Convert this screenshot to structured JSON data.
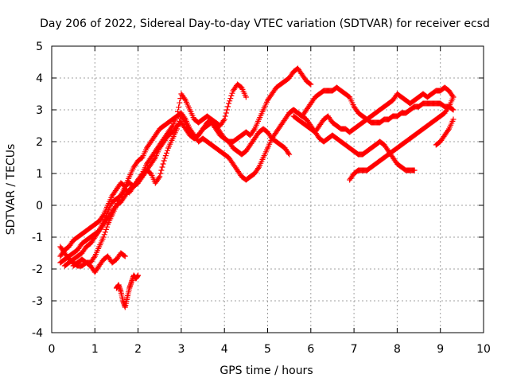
{
  "chart_data": {
    "type": "scatter",
    "title": "Day 206 of 2022, Sidereal Day-to-day VTEC variation (SDTVAR) for receiver ecsd",
    "xlabel": "GPS time / hours",
    "ylabel": "SDTVAR / TECUs",
    "xlim": [
      0,
      10
    ],
    "ylim": [
      -4,
      5
    ],
    "xticks": [
      "0",
      "1",
      "2",
      "3",
      "4",
      "5",
      "6",
      "7",
      "8",
      "9",
      "10"
    ],
    "yticks": [
      "-4",
      "-3",
      "-2",
      "-1",
      "0",
      "1",
      "2",
      "3",
      "4",
      "5"
    ],
    "grid": true,
    "marker": "plus",
    "color": "#ff0000",
    "series": [
      {
        "x": [
          0.2,
          0.3,
          0.4,
          0.5,
          0.6,
          0.7,
          0.8,
          0.9,
          1.0,
          1.1,
          1.2,
          1.3,
          1.4,
          1.5,
          1.6,
          1.7,
          1.8,
          1.9,
          2.0,
          2.1,
          2.2,
          2.3,
          2.4,
          2.5,
          2.6,
          2.7,
          2.8,
          2.9,
          3.0,
          3.1,
          3.2,
          3.3,
          3.4,
          3.5,
          3.6,
          3.7,
          3.8,
          3.9,
          4.0,
          4.1,
          4.2,
          4.3,
          4.4,
          4.5
        ],
        "y": [
          -1.6,
          -1.4,
          -1.3,
          -1.1,
          -1.0,
          -0.9,
          -0.8,
          -0.7,
          -0.6,
          -0.5,
          -0.3,
          0.0,
          0.3,
          0.5,
          0.7,
          0.6,
          0.9,
          1.2,
          1.4,
          1.5,
          1.8,
          2.0,
          2.2,
          2.4,
          2.5,
          2.6,
          2.7,
          2.8,
          3.5,
          3.3,
          3.0,
          2.7,
          2.6,
          2.7,
          2.8,
          2.7,
          2.6,
          2.5,
          2.7,
          3.2,
          3.6,
          3.8,
          3.7,
          3.4
        ]
      },
      {
        "x": [
          0.3,
          0.4,
          0.5,
          0.6,
          0.7,
          0.8,
          0.9,
          1.0,
          1.1,
          1.2,
          1.3,
          1.4,
          1.5,
          1.6,
          1.7,
          1.8,
          1.9,
          2.0,
          2.1,
          2.2,
          2.3,
          2.4,
          2.5,
          2.6,
          2.7,
          2.8,
          2.9,
          3.0,
          3.1,
          3.2,
          3.3,
          3.4,
          3.5,
          3.6,
          3.7,
          3.8,
          3.9,
          4.0,
          4.1,
          4.2,
          4.3,
          4.4,
          4.5,
          4.6,
          4.7,
          4.8,
          4.9,
          5.0,
          5.1,
          5.2,
          5.3,
          5.4,
          5.5,
          5.6,
          5.7,
          5.8,
          5.9,
          6.0
        ],
        "y": [
          -1.9,
          -1.8,
          -1.7,
          -1.6,
          -1.5,
          -1.3,
          -1.2,
          -1.0,
          -0.8,
          -0.5,
          -0.2,
          0.1,
          0.2,
          0.3,
          0.5,
          0.4,
          0.6,
          0.8,
          0.9,
          1.1,
          1.0,
          0.7,
          0.9,
          1.4,
          1.8,
          2.1,
          2.4,
          2.8,
          2.6,
          2.3,
          2.1,
          2.2,
          2.4,
          2.6,
          2.7,
          2.5,
          2.3,
          2.1,
          2.0,
          2.0,
          2.1,
          2.2,
          2.3,
          2.2,
          2.4,
          2.7,
          3.0,
          3.3,
          3.5,
          3.7,
          3.8,
          3.9,
          4.0,
          4.2,
          4.3,
          4.1,
          3.9,
          3.8
        ]
      },
      {
        "x": [
          0.2,
          0.3,
          0.4,
          0.5,
          0.6,
          0.7,
          0.8,
          0.9,
          1.0,
          1.1,
          1.2,
          1.3,
          1.4,
          1.5,
          1.6,
          1.7,
          1.8,
          1.9,
          2.0,
          2.1,
          2.2,
          2.3,
          2.4,
          2.5,
          2.6,
          2.7,
          2.8,
          2.9,
          3.0,
          3.1,
          3.2,
          3.3,
          3.4,
          3.5,
          3.6,
          3.7,
          3.8,
          3.9,
          4.0,
          4.1,
          4.2,
          4.3,
          4.4,
          4.5,
          4.6,
          4.7,
          4.8,
          4.9,
          5.0,
          5.1,
          5.2,
          5.3,
          5.4,
          5.5,
          5.6,
          5.7,
          5.8,
          5.9,
          6.0,
          6.1,
          6.2,
          6.3,
          6.4,
          6.5,
          6.6,
          6.7,
          6.8,
          6.9,
          7.0,
          7.1,
          7.2,
          7.3,
          7.4,
          7.5,
          7.6,
          7.7,
          7.8,
          7.9,
          8.0,
          8.1,
          8.2,
          8.3,
          8.4
        ],
        "y": [
          -1.3,
          -1.5,
          -1.7,
          -1.8,
          -1.9,
          -1.9,
          -1.8,
          -1.8,
          -1.6,
          -1.3,
          -1.0,
          -0.6,
          -0.3,
          0.0,
          0.3,
          0.6,
          0.7,
          0.6,
          0.8,
          1.0,
          1.3,
          1.5,
          1.7,
          1.9,
          2.1,
          2.3,
          2.5,
          2.8,
          2.9,
          2.7,
          2.4,
          2.2,
          2.0,
          2.1,
          2.0,
          1.9,
          1.8,
          1.7,
          1.6,
          1.5,
          1.3,
          1.1,
          0.9,
          0.8,
          0.9,
          1.0,
          1.2,
          1.5,
          1.8,
          2.1,
          2.3,
          2.5,
          2.7,
          2.9,
          3.0,
          2.9,
          2.8,
          2.7,
          2.5,
          2.3,
          2.1,
          2.0,
          2.1,
          2.2,
          2.1,
          2.0,
          1.9,
          1.8,
          1.7,
          1.6,
          1.6,
          1.7,
          1.8,
          1.9,
          2.0,
          1.9,
          1.7,
          1.5,
          1.3,
          1.2,
          1.1,
          1.1,
          1.1
        ]
      },
      {
        "x": [
          0.2,
          0.3,
          0.4,
          0.5,
          0.6,
          0.7,
          0.8,
          0.9,
          1.0,
          1.1,
          1.2,
          1.3,
          1.4,
          1.5,
          1.6,
          1.7,
          1.8,
          1.9,
          2.0,
          2.1,
          2.2,
          2.3,
          2.4,
          2.5,
          2.6,
          2.7,
          2.8,
          2.9,
          3.0,
          3.1,
          3.2,
          3.3,
          3.4,
          3.5,
          3.6,
          3.7,
          3.8,
          3.9,
          4.0,
          4.1,
          4.2,
          4.3,
          4.4,
          4.5,
          4.6,
          4.7,
          4.8,
          4.9,
          5.0,
          5.1,
          5.2,
          5.3,
          5.4,
          5.5
        ],
        "y": [
          -1.8,
          -1.7,
          -1.6,
          -1.5,
          -1.4,
          -1.2,
          -1.1,
          -1.0,
          -0.9,
          -0.8,
          -0.6,
          -0.4,
          -0.2,
          0.0,
          0.1,
          0.3,
          0.5,
          0.6,
          0.7,
          0.9,
          1.1,
          1.3,
          1.5,
          1.8,
          2.0,
          2.2,
          2.3,
          2.5,
          2.6,
          2.4,
          2.2,
          2.1,
          2.2,
          2.4,
          2.5,
          2.6,
          2.4,
          2.2,
          2.1,
          2.0,
          1.8,
          1.7,
          1.6,
          1.7,
          1.9,
          2.1,
          2.3,
          2.4,
          2.3,
          2.1,
          2.0,
          1.9,
          1.8,
          1.6
        ]
      },
      {
        "x": [
          0.5,
          0.6,
          0.7,
          0.8,
          0.9,
          1.0,
          1.1,
          1.2,
          1.3,
          1.4,
          1.5,
          1.6,
          1.7
        ],
        "y": [
          -1.9,
          -1.8,
          -1.7,
          -1.8,
          -1.9,
          -2.1,
          -1.9,
          -1.7,
          -1.6,
          -1.8,
          -1.7,
          -1.5,
          -1.6
        ]
      },
      {
        "x": [
          1.5,
          1.55,
          1.6,
          1.65,
          1.7,
          1.75,
          1.8,
          1.85,
          1.9,
          1.95,
          2.0
        ],
        "y": [
          -2.6,
          -2.5,
          -2.7,
          -3.0,
          -3.2,
          -2.9,
          -2.6,
          -2.4,
          -2.2,
          -2.3,
          -2.2
        ]
      },
      {
        "x": [
          5.6,
          5.7,
          5.8,
          5.9,
          6.0,
          6.1,
          6.2,
          6.3,
          6.4,
          6.5,
          6.6,
          6.7,
          6.8,
          6.9,
          7.0,
          7.1,
          7.2,
          7.3,
          7.4,
          7.5,
          7.6,
          7.7,
          7.8,
          7.9,
          8.0,
          8.1,
          8.2,
          8.3,
          8.4,
          8.5,
          8.6,
          8.7,
          8.8,
          8.9,
          9.0,
          9.1,
          9.2,
          9.3
        ],
        "y": [
          2.8,
          2.7,
          2.6,
          2.5,
          2.4,
          2.3,
          2.5,
          2.7,
          2.8,
          2.6,
          2.5,
          2.4,
          2.4,
          2.3,
          2.4,
          2.5,
          2.6,
          2.7,
          2.8,
          2.9,
          3.0,
          3.1,
          3.2,
          3.3,
          3.5,
          3.4,
          3.3,
          3.2,
          3.3,
          3.4,
          3.5,
          3.4,
          3.5,
          3.6,
          3.6,
          3.7,
          3.6,
          3.4
        ]
      },
      {
        "x": [
          5.5,
          5.6,
          5.7,
          5.8,
          5.9,
          6.0,
          6.1,
          6.2,
          6.3,
          6.4,
          6.5,
          6.6,
          6.7,
          6.8,
          6.9,
          7.0,
          7.1,
          7.2,
          7.3,
          7.4,
          7.5,
          7.6,
          7.7,
          7.8,
          7.9,
          8.0,
          8.1,
          8.2,
          8.3,
          8.4,
          8.5,
          8.6,
          8.7,
          8.8,
          8.9,
          9.0,
          9.1,
          9.2,
          9.3
        ],
        "y": [
          2.9,
          3.0,
          2.9,
          2.8,
          3.0,
          3.2,
          3.4,
          3.5,
          3.6,
          3.6,
          3.6,
          3.7,
          3.6,
          3.5,
          3.4,
          3.1,
          2.9,
          2.8,
          2.7,
          2.6,
          2.6,
          2.6,
          2.7,
          2.7,
          2.8,
          2.8,
          2.9,
          2.9,
          3.0,
          3.1,
          3.1,
          3.2,
          3.2,
          3.2,
          3.2,
          3.2,
          3.1,
          3.1,
          3.0
        ]
      },
      {
        "x": [
          6.9,
          7.0,
          7.1,
          7.2,
          7.3,
          7.4,
          7.5,
          7.6,
          7.7,
          7.8,
          7.9,
          8.0,
          8.1,
          8.2,
          8.3,
          8.4,
          8.5,
          8.6,
          8.7,
          8.8,
          8.9,
          9.0,
          9.1,
          9.2,
          9.3
        ],
        "y": [
          0.8,
          1.0,
          1.1,
          1.1,
          1.1,
          1.2,
          1.3,
          1.4,
          1.5,
          1.6,
          1.7,
          1.8,
          1.9,
          2.0,
          2.1,
          2.2,
          2.3,
          2.4,
          2.5,
          2.6,
          2.7,
          2.8,
          2.9,
          3.1,
          3.4
        ]
      },
      {
        "x": [
          8.9,
          9.0,
          9.1,
          9.2,
          9.3
        ],
        "y": [
          1.9,
          2.0,
          2.2,
          2.4,
          2.7
        ]
      }
    ]
  }
}
